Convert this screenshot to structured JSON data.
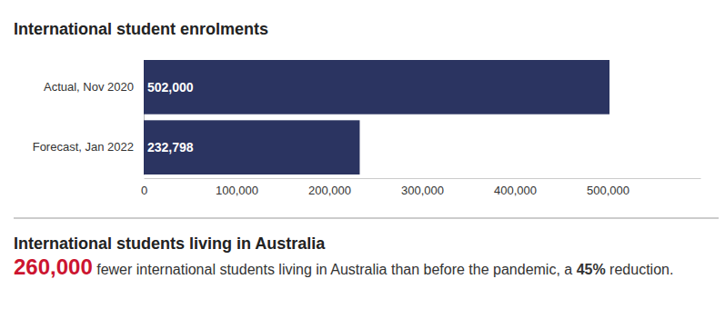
{
  "chart_data": {
    "type": "bar",
    "title": "International student enrolments",
    "orientation": "horizontal",
    "categories": [
      "Actual, Nov 2020",
      "Forecast, Jan 2022"
    ],
    "values": [
      502000,
      232798
    ],
    "value_labels": [
      "502,000",
      "232,798"
    ],
    "data_labels": true,
    "color": "#2b3461",
    "grid": false,
    "xlim": [
      0,
      600000
    ],
    "xticks": [
      0,
      {
        "value": 100000,
        "label": "100,000"
      },
      {
        "value": 200000,
        "label": "200,000"
      },
      {
        "value": 300000,
        "label": "300,000"
      },
      {
        "value": 400000,
        "label": "400,000"
      },
      {
        "value": 500000,
        "label": "500,000"
      }
    ]
  },
  "summary": {
    "title": "International students living in Australia",
    "highlight": "260,000",
    "text": " fewer international students living in Australia than before the pandemic, a ",
    "emphasis": "45%",
    "ending": " reduction."
  }
}
